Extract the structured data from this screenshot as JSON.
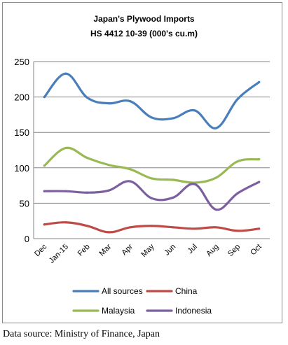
{
  "chart_data": {
    "type": "line",
    "title": "Japan's Plywood Imports",
    "subtitle": "HS 4412 10-39  (000's cu.m)",
    "categories": [
      "Dec",
      "Jan-15",
      "Feb",
      "Mar",
      "Apr",
      "May",
      "Jun",
      "Jul",
      "Aug",
      "Sep",
      "Oct"
    ],
    "ylim": [
      0,
      250
    ],
    "yticks": [
      "0",
      "50",
      "100",
      "150",
      "200",
      "250"
    ],
    "grid": true,
    "legend_position": "bottom",
    "series": [
      {
        "name": "All sources",
        "color": "#4a7ebb",
        "values": [
          200,
          233,
          199,
          191,
          194,
          171,
          170,
          181,
          156,
          197,
          221
        ]
      },
      {
        "name": "China",
        "color": "#be4b48",
        "values": [
          20,
          23,
          18,
          9,
          16,
          18,
          16,
          14,
          16,
          11,
          14
        ]
      },
      {
        "name": "Malaysia",
        "color": "#98b954",
        "values": [
          103,
          128,
          114,
          104,
          98,
          85,
          83,
          79,
          86,
          109,
          112
        ]
      },
      {
        "name": "Indonesia",
        "color": "#7d5fa0",
        "values": [
          67,
          67,
          65,
          68,
          81,
          57,
          58,
          77,
          41,
          64,
          80
        ]
      }
    ]
  },
  "footer": {
    "source": "Data source: Ministry of Finance, Japan"
  }
}
